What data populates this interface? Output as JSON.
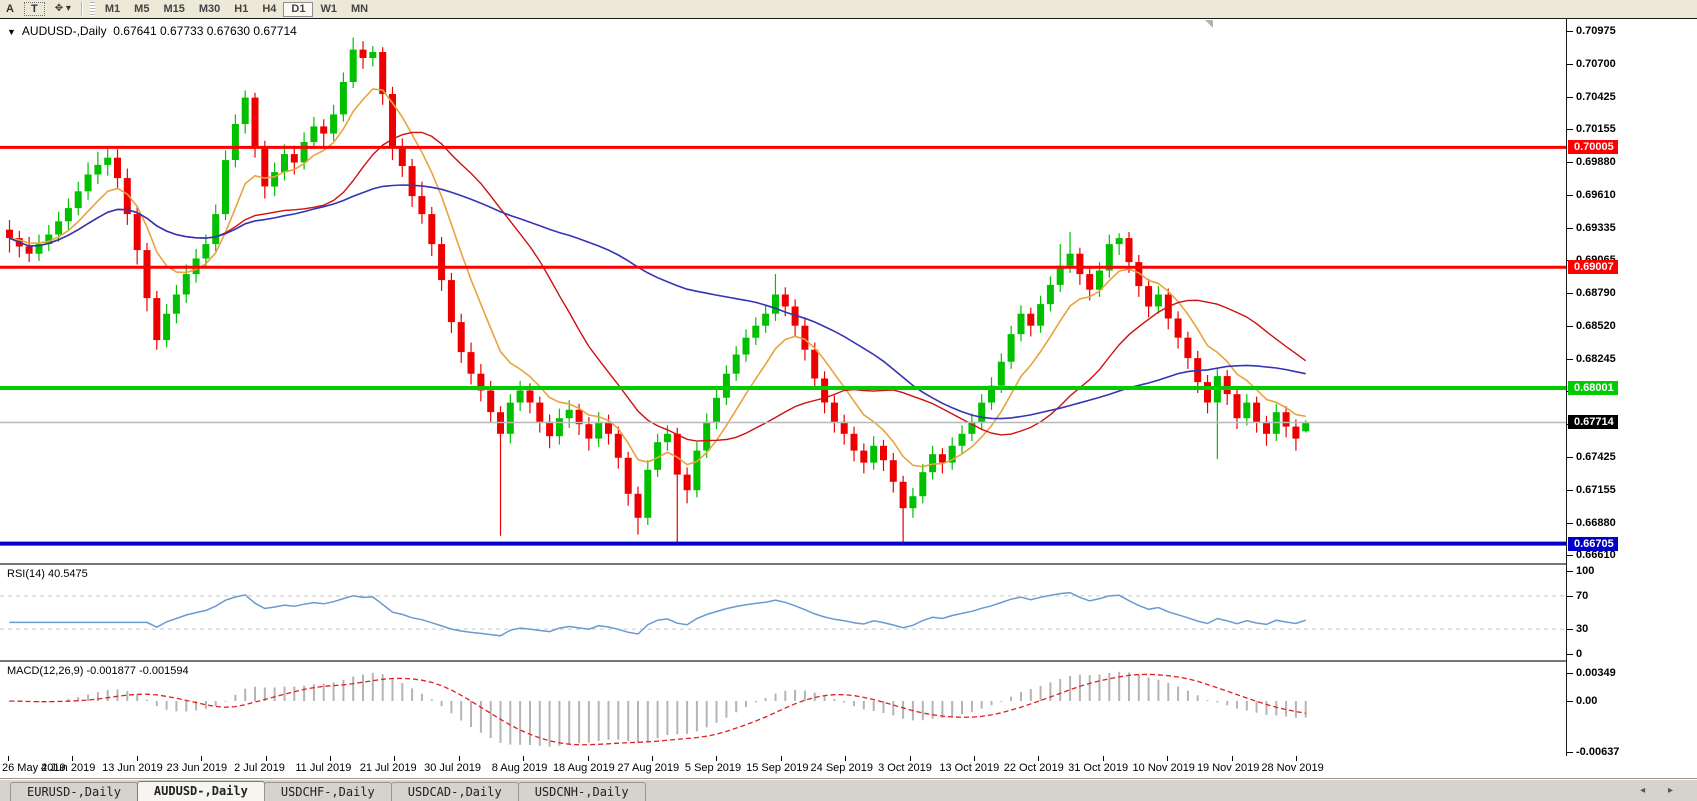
{
  "toolbar": {
    "buttons": [
      {
        "name": "toolbar-button-a",
        "label": "A"
      },
      {
        "name": "toolbar-button-text",
        "label": "T"
      }
    ],
    "cursor_tool_glyph": "✥",
    "cursor_dropdown_glyph": "▾",
    "timeframes": [
      "M1",
      "M5",
      "M15",
      "M30",
      "H1",
      "H4",
      "D1",
      "W1",
      "MN"
    ],
    "active_timeframe": "D1"
  },
  "icons": {
    "dropdown": "▼",
    "tab_scroll": "◂ ▸"
  },
  "chart": {
    "title_symbol": "AUDUSD-,Daily",
    "title_ohlc": "0.67641 0.67733 0.67630 0.67714"
  },
  "panes": {
    "rsi_label": "RSI(14) 40.5475",
    "macd_label": "MACD(12,26,9) -0.001877 -0.001594"
  },
  "price_axis": {
    "ticks": [
      "0.70975",
      "0.70700",
      "0.70425",
      "0.70155",
      "0.69880",
      "0.69610",
      "0.69335",
      "0.69065",
      "0.68790",
      "0.68520",
      "0.68245",
      "0.67975",
      "0.67700",
      "0.67425",
      "0.67155",
      "0.66880",
      "0.66610"
    ],
    "labels": [
      {
        "text": "0.70005",
        "price": 0.70005,
        "bg": "#ff0000"
      },
      {
        "text": "0.69007",
        "price": 0.69007,
        "bg": "#ff0000"
      },
      {
        "text": "0.68001",
        "price": 0.68001,
        "bg": "#00cc00"
      },
      {
        "text": "0.66705",
        "price": 0.66705,
        "bg": "#0000c8"
      },
      {
        "text": "0.67714",
        "price": 0.67714,
        "bg": "#000000"
      }
    ]
  },
  "rsi_axis": {
    "ticks": [
      {
        "label": "100",
        "v": 100
      },
      {
        "label": "70",
        "v": 70
      },
      {
        "label": "30",
        "v": 30
      },
      {
        "label": "0",
        "v": 0
      }
    ]
  },
  "macd_axis": {
    "ticks": [
      {
        "label": "0.00349",
        "v": 0.00349
      },
      {
        "label": "0.00",
        "v": 0
      },
      {
        "label": "-0.00637",
        "v": -0.00637
      }
    ]
  },
  "bottom_tabs": {
    "tabs": [
      {
        "label": "EURUSD-,Daily",
        "active": false
      },
      {
        "label": "AUDUSD-,Daily",
        "active": true
      },
      {
        "label": "USDCHF-,Daily",
        "active": false
      },
      {
        "label": "USDCAD-,Daily",
        "active": false
      },
      {
        "label": "USDCNH-,Daily",
        "active": false
      }
    ]
  },
  "chart_data": {
    "type": "candlestick",
    "symbol": "AUDUSD",
    "timeframe": "Daily",
    "title": "AUDUSD-,Daily  O 0.67641  H 0.67733  L 0.67630  C 0.67714",
    "ylim": [
      0.6661,
      0.70975
    ],
    "x_tick_dates": [
      "26 May 2019",
      "4 Jun 2019",
      "13 Jun 2019",
      "23 Jun 2019",
      "2 Jul 2019",
      "11 Jul 2019",
      "21 Jul 2019",
      "30 Jul 2019",
      "8 Aug 2019",
      "18 Aug 2019",
      "27 Aug 2019",
      "5 Sep 2019",
      "15 Sep 2019",
      "24 Sep 2019",
      "3 Oct 2019",
      "13 Oct 2019",
      "22 Oct 2019",
      "31 Oct 2019",
      "10 Nov 2019",
      "19 Nov 2019",
      "28 Nov 2019"
    ],
    "horizontal_lines": [
      {
        "price": 0.70005,
        "color": "#ff0000",
        "width": 3
      },
      {
        "price": 0.69007,
        "color": "#ff0000",
        "width": 3
      },
      {
        "price": 0.68001,
        "color": "#00cc00",
        "width": 4
      },
      {
        "price": 0.66705,
        "color": "#0000c8",
        "width": 4
      }
    ],
    "current_price": 0.67714,
    "colors": {
      "bull": "#00c000",
      "bear": "#ee0000",
      "current_line": "#b8b8b8",
      "rsi": "#6a9ad0",
      "rsi_levels": "#c8c8c8",
      "macd_hist": "#b4b4b4",
      "macd_signal": "#e02020"
    },
    "moving_averages": [
      {
        "type": "ema",
        "period": 8,
        "color": "#e8a33d",
        "width": 1.6
      },
      {
        "type": "sma",
        "period": 21,
        "color": "#d01010",
        "width": 1.4
      },
      {
        "type": "sma",
        "period": 55,
        "color": "#3434b4",
        "width": 1.6
      }
    ],
    "indicators": [
      {
        "name": "RSI",
        "period": 14,
        "current_value": 40.5475,
        "levels": [
          70,
          30
        ],
        "range": [
          0,
          100
        ]
      },
      {
        "name": "MACD",
        "params": [
          12,
          26,
          9
        ],
        "main_value": -0.001877,
        "signal_value": -0.001594
      }
    ],
    "candles": [
      [
        0.6932,
        0.694,
        0.6913,
        0.6925
      ],
      [
        0.6925,
        0.6931,
        0.6909,
        0.6918
      ],
      [
        0.6918,
        0.6926,
        0.6905,
        0.6912
      ],
      [
        0.6912,
        0.6928,
        0.6906,
        0.692
      ],
      [
        0.692,
        0.6936,
        0.6914,
        0.6928
      ],
      [
        0.6928,
        0.6947,
        0.6922,
        0.6939
      ],
      [
        0.6939,
        0.6958,
        0.6931,
        0.695
      ],
      [
        0.695,
        0.6972,
        0.6944,
        0.6964
      ],
      [
        0.6964,
        0.6988,
        0.6957,
        0.6978
      ],
      [
        0.6978,
        0.6997,
        0.697,
        0.6986
      ],
      [
        0.6986,
        0.7,
        0.6977,
        0.6992
      ],
      [
        0.6992,
        0.6999,
        0.6966,
        0.6975
      ],
      [
        0.6975,
        0.6983,
        0.6936,
        0.6945
      ],
      [
        0.6945,
        0.6952,
        0.6903,
        0.6915
      ],
      [
        0.6915,
        0.6921,
        0.6864,
        0.6875
      ],
      [
        0.6875,
        0.6881,
        0.6832,
        0.684
      ],
      [
        0.684,
        0.687,
        0.6834,
        0.6862
      ],
      [
        0.6862,
        0.6886,
        0.6854,
        0.6878
      ],
      [
        0.6878,
        0.6903,
        0.6871,
        0.6895
      ],
      [
        0.6895,
        0.6916,
        0.6888,
        0.6908
      ],
      [
        0.6908,
        0.6928,
        0.69,
        0.692
      ],
      [
        0.692,
        0.6953,
        0.6914,
        0.6945
      ],
      [
        0.6945,
        0.6998,
        0.694,
        0.699
      ],
      [
        0.699,
        0.7028,
        0.6984,
        0.702
      ],
      [
        0.702,
        0.7048,
        0.7012,
        0.7042
      ],
      [
        0.7042,
        0.7046,
        0.6992,
        0.7
      ],
      [
        0.7,
        0.7006,
        0.6958,
        0.6968
      ],
      [
        0.6968,
        0.6988,
        0.696,
        0.698
      ],
      [
        0.698,
        0.7003,
        0.6973,
        0.6995
      ],
      [
        0.6995,
        0.7002,
        0.6978,
        0.6988
      ],
      [
        0.6988,
        0.7013,
        0.6982,
        0.7005
      ],
      [
        0.7005,
        0.7026,
        0.6999,
        0.7018
      ],
      [
        0.7018,
        0.7024,
        0.7001,
        0.7012
      ],
      [
        0.7012,
        0.7036,
        0.7006,
        0.7028
      ],
      [
        0.7028,
        0.7063,
        0.7022,
        0.7055
      ],
      [
        0.7055,
        0.7092,
        0.705,
        0.7082
      ],
      [
        0.7082,
        0.7089,
        0.7066,
        0.7075
      ],
      [
        0.7075,
        0.7085,
        0.7068,
        0.708
      ],
      [
        0.708,
        0.7084,
        0.7036,
        0.7045
      ],
      [
        0.7045,
        0.7051,
        0.699,
        0.7
      ],
      [
        0.7,
        0.7008,
        0.6976,
        0.6985
      ],
      [
        0.6985,
        0.6991,
        0.6951,
        0.696
      ],
      [
        0.696,
        0.6972,
        0.6937,
        0.6945
      ],
      [
        0.6945,
        0.6951,
        0.691,
        0.692
      ],
      [
        0.692,
        0.6926,
        0.6881,
        0.689
      ],
      [
        0.689,
        0.6896,
        0.6846,
        0.6855
      ],
      [
        0.6855,
        0.6862,
        0.6821,
        0.683
      ],
      [
        0.683,
        0.6838,
        0.6803,
        0.6812
      ],
      [
        0.6812,
        0.682,
        0.6789,
        0.6798
      ],
      [
        0.6798,
        0.6806,
        0.6771,
        0.678
      ],
      [
        0.678,
        0.6785,
        0.6677,
        0.6762
      ],
      [
        0.6762,
        0.6795,
        0.6754,
        0.6788
      ],
      [
        0.6788,
        0.6806,
        0.6781,
        0.6798
      ],
      [
        0.6798,
        0.6804,
        0.6779,
        0.6788
      ],
      [
        0.6788,
        0.6793,
        0.6763,
        0.6772
      ],
      [
        0.6772,
        0.6778,
        0.675,
        0.676
      ],
      [
        0.676,
        0.6783,
        0.6753,
        0.6775
      ],
      [
        0.6775,
        0.679,
        0.6767,
        0.6782
      ],
      [
        0.6782,
        0.6787,
        0.6761,
        0.677
      ],
      [
        0.677,
        0.6776,
        0.6748,
        0.6758
      ],
      [
        0.6758,
        0.678,
        0.6751,
        0.6772
      ],
      [
        0.6772,
        0.6778,
        0.6753,
        0.6762
      ],
      [
        0.6762,
        0.6768,
        0.6733,
        0.6742
      ],
      [
        0.6742,
        0.6747,
        0.6702,
        0.6712
      ],
      [
        0.6712,
        0.6718,
        0.6678,
        0.6692
      ],
      [
        0.6692,
        0.674,
        0.6686,
        0.6732
      ],
      [
        0.6732,
        0.6762,
        0.6726,
        0.6755
      ],
      [
        0.6755,
        0.6769,
        0.6748,
        0.6762
      ],
      [
        0.6762,
        0.6767,
        0.6671,
        0.6728
      ],
      [
        0.6728,
        0.6734,
        0.6704,
        0.6715
      ],
      [
        0.6715,
        0.6755,
        0.6709,
        0.6748
      ],
      [
        0.6748,
        0.6779,
        0.6742,
        0.6772
      ],
      [
        0.6772,
        0.6799,
        0.6766,
        0.6792
      ],
      [
        0.6792,
        0.6819,
        0.6786,
        0.6812
      ],
      [
        0.6812,
        0.6835,
        0.6806,
        0.6828
      ],
      [
        0.6828,
        0.6849,
        0.6822,
        0.6842
      ],
      [
        0.6842,
        0.6859,
        0.6836,
        0.6852
      ],
      [
        0.6852,
        0.6869,
        0.6846,
        0.6862
      ],
      [
        0.6862,
        0.6895,
        0.6856,
        0.6878
      ],
      [
        0.6878,
        0.6884,
        0.686,
        0.6868
      ],
      [
        0.6868,
        0.6874,
        0.6843,
        0.6852
      ],
      [
        0.6852,
        0.6858,
        0.6823,
        0.6832
      ],
      [
        0.6832,
        0.6838,
        0.6799,
        0.6808
      ],
      [
        0.6808,
        0.6814,
        0.6779,
        0.6788
      ],
      [
        0.6788,
        0.6794,
        0.6763,
        0.6772
      ],
      [
        0.6772,
        0.6778,
        0.6753,
        0.6762
      ],
      [
        0.6762,
        0.6768,
        0.6739,
        0.6748
      ],
      [
        0.6748,
        0.6754,
        0.6729,
        0.6738
      ],
      [
        0.6738,
        0.676,
        0.6732,
        0.6752
      ],
      [
        0.6752,
        0.6757,
        0.6731,
        0.674
      ],
      [
        0.674,
        0.6746,
        0.6713,
        0.6722
      ],
      [
        0.6722,
        0.6727,
        0.66705,
        0.67
      ],
      [
        0.67,
        0.6717,
        0.6692,
        0.671
      ],
      [
        0.671,
        0.6737,
        0.6704,
        0.673
      ],
      [
        0.673,
        0.6752,
        0.6724,
        0.6745
      ],
      [
        0.6745,
        0.675,
        0.6729,
        0.6738
      ],
      [
        0.6738,
        0.6759,
        0.6732,
        0.6752
      ],
      [
        0.6752,
        0.6769,
        0.6746,
        0.6762
      ],
      [
        0.6762,
        0.6779,
        0.6756,
        0.6772
      ],
      [
        0.6772,
        0.6795,
        0.6766,
        0.6788
      ],
      [
        0.6788,
        0.6809,
        0.6782,
        0.6802
      ],
      [
        0.6802,
        0.6829,
        0.6796,
        0.6822
      ],
      [
        0.6822,
        0.6852,
        0.6816,
        0.6845
      ],
      [
        0.6845,
        0.6869,
        0.6839,
        0.6862
      ],
      [
        0.6862,
        0.6867,
        0.6843,
        0.6852
      ],
      [
        0.6852,
        0.6877,
        0.6846,
        0.687
      ],
      [
        0.687,
        0.6893,
        0.6864,
        0.6886
      ],
      [
        0.6886,
        0.692,
        0.688,
        0.6902
      ],
      [
        0.6902,
        0.693,
        0.6896,
        0.6912
      ],
      [
        0.6912,
        0.6917,
        0.6886,
        0.6895
      ],
      [
        0.6895,
        0.6901,
        0.6873,
        0.6882
      ],
      [
        0.6882,
        0.6905,
        0.6876,
        0.6898
      ],
      [
        0.6898,
        0.6928,
        0.6892,
        0.692
      ],
      [
        0.692,
        0.6929,
        0.6911,
        0.6925
      ],
      [
        0.6925,
        0.693,
        0.6896,
        0.6905
      ],
      [
        0.6905,
        0.6911,
        0.6876,
        0.6885
      ],
      [
        0.6885,
        0.6891,
        0.6859,
        0.6868
      ],
      [
        0.6868,
        0.6885,
        0.6862,
        0.6878
      ],
      [
        0.6878,
        0.6883,
        0.6849,
        0.6858
      ],
      [
        0.6858,
        0.6864,
        0.6833,
        0.6842
      ],
      [
        0.6842,
        0.6847,
        0.6816,
        0.6825
      ],
      [
        0.6825,
        0.6831,
        0.6796,
        0.6805
      ],
      [
        0.6805,
        0.6811,
        0.6779,
        0.6788
      ],
      [
        0.6788,
        0.6817,
        0.6741,
        0.681
      ],
      [
        0.681,
        0.6815,
        0.6786,
        0.6795
      ],
      [
        0.6795,
        0.6801,
        0.6766,
        0.6775
      ],
      [
        0.6775,
        0.6795,
        0.6769,
        0.6788
      ],
      [
        0.6788,
        0.6793,
        0.6763,
        0.6772
      ],
      [
        0.6772,
        0.6777,
        0.6752,
        0.6762
      ],
      [
        0.6762,
        0.6787,
        0.6756,
        0.678
      ],
      [
        0.678,
        0.6785,
        0.6759,
        0.6768
      ],
      [
        0.6768,
        0.6774,
        0.6748,
        0.6758
      ],
      [
        0.67641,
        0.67733,
        0.6763,
        0.67714
      ]
    ]
  }
}
